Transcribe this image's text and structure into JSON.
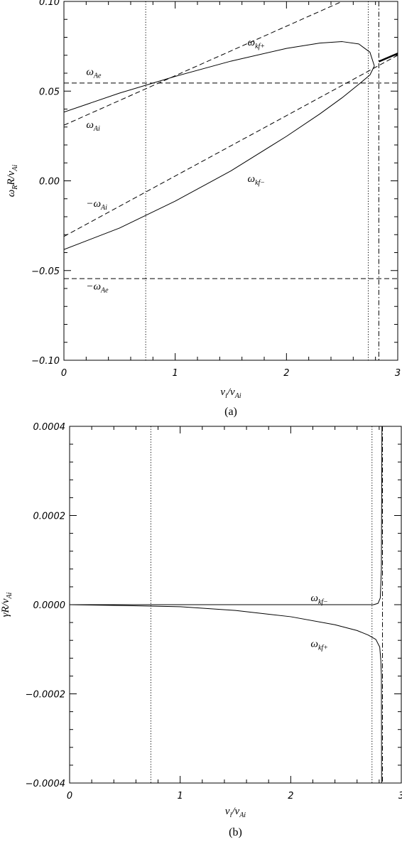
{
  "chart_data": [
    {
      "type": "line",
      "panel_label": "(a)",
      "xlabel": {
        "main": "v",
        "sub1": "i",
        "slash": "/v",
        "sub2": "Ai"
      },
      "ylabel": {
        "main": "ω",
        "sub1": "R",
        "mid": "R/v",
        "sub2": "Ai"
      },
      "xlim": [
        0,
        3
      ],
      "ylim": [
        -0.1,
        0.1
      ],
      "x_ticks": [
        0,
        1,
        2,
        3
      ],
      "x_tick_labels": [
        "0",
        "1",
        "2",
        "3"
      ],
      "y_ticks": [
        -0.1,
        -0.05,
        0,
        0.05,
        0.1
      ],
      "y_tick_labels": [
        "−0.10",
        "−0.05",
        "0.00",
        "0.05",
        "0.10"
      ],
      "grid": false,
      "series": [
        {
          "name": "ωkf+",
          "style": "solid",
          "x": [
            0,
            0.5,
            1.0,
            1.5,
            2.0,
            2.3,
            2.5,
            2.65,
            2.75,
            2.79
          ],
          "y": [
            0.0383,
            0.0489,
            0.0582,
            0.0667,
            0.0738,
            0.0768,
            0.0776,
            0.0763,
            0.0717,
            0.064
          ]
        },
        {
          "name": "ωkf−",
          "style": "solid",
          "x": [
            0,
            0.5,
            1.0,
            1.5,
            2.0,
            2.3,
            2.5,
            2.65,
            2.75,
            2.79
          ],
          "y": [
            -0.0383,
            -0.0263,
            -0.0113,
            0.0055,
            0.0248,
            0.0373,
            0.0463,
            0.0538,
            0.059,
            0.064
          ]
        },
        {
          "name": "bold",
          "style": "bold",
          "x": [
            2.83,
            3.0
          ],
          "y": [
            0.0665,
            0.071
          ]
        },
        {
          "name": "ωAi",
          "style": "dashed",
          "x": [
            0,
            2.5
          ],
          "y": [
            0.031,
            0.1
          ]
        },
        {
          "name": "−ωAi",
          "style": "dashed",
          "x": [
            0,
            3.0
          ],
          "y": [
            -0.031,
            0.07
          ]
        },
        {
          "name": "ωAe",
          "style": "dashed",
          "x": [
            0,
            3.0
          ],
          "y": [
            0.0545,
            0.0545
          ]
        },
        {
          "name": "−ωAe",
          "style": "dashed",
          "x": [
            0,
            3.0
          ],
          "y": [
            -0.0545,
            -0.0545
          ]
        }
      ],
      "vlines": [
        {
          "x": 0.735,
          "style": "dotted"
        },
        {
          "x": 2.735,
          "style": "dotted"
        },
        {
          "x": 2.83,
          "style": "dashdot"
        }
      ],
      "annotations": [
        {
          "main": "ω",
          "sub": "Ae",
          "x": 0.2,
          "y": 0.059
        },
        {
          "main": "ω",
          "sub": "Ai",
          "x": 0.2,
          "y": 0.0295
        },
        {
          "main": "−ω",
          "sub": "Ai",
          "x": 0.2,
          "y": -0.0145
        },
        {
          "main": "−ω",
          "sub": "Ae",
          "x": 0.2,
          "y": -0.0605
        },
        {
          "main": "ω",
          "sub": "kf+",
          "x": 1.65,
          "y": 0.0755
        },
        {
          "main": "ω",
          "sub": "kf−",
          "x": 1.65,
          "y": -0.0005
        }
      ]
    },
    {
      "type": "line",
      "panel_label": "(b)",
      "xlabel": {
        "main": "v",
        "sub1": "i",
        "slash": "/v",
        "sub2": "Ai"
      },
      "ylabel": {
        "main": "γR/v",
        "sub2": "Ai"
      },
      "xlim": [
        0,
        3
      ],
      "ylim": [
        -0.0004,
        0.0004
      ],
      "x_ticks": [
        0,
        1,
        2,
        3
      ],
      "x_tick_labels": [
        "0",
        "1",
        "2",
        "3"
      ],
      "y_ticks": [
        -0.0004,
        -0.0002,
        0,
        0.0002,
        0.0004
      ],
      "y_tick_labels": [
        "−0.0004",
        "−0.0002",
        "0.0000",
        "0.0002",
        "0.0004"
      ],
      "grid": false,
      "series": [
        {
          "name": "ωkf−",
          "style": "solid",
          "x": [
            0,
            2.5,
            2.75,
            2.79,
            2.81,
            2.82,
            2.825
          ],
          "y": [
            0,
            0,
            0,
            3e-06,
            1.5e-05,
            8e-05,
            0.0004
          ]
        },
        {
          "name": "ωkf+",
          "style": "solid",
          "x": [
            0,
            0.5,
            1.0,
            1.5,
            2.0,
            2.4,
            2.6,
            2.7,
            2.77,
            2.805,
            2.815,
            2.82,
            2.822
          ],
          "y": [
            0,
            -2e-06,
            -4.5e-06,
            -1.3e-05,
            -2.7e-05,
            -4.5e-05,
            -5.8e-05,
            -6.8e-05,
            -7.8e-05,
            -9.5e-05,
            -0.000125,
            -0.00016,
            -0.0004
          ]
        }
      ],
      "vlines": [
        {
          "x": 0.735,
          "style": "dotted"
        },
        {
          "x": 2.735,
          "style": "dotted"
        },
        {
          "x": 2.83,
          "style": "dashdot"
        }
      ],
      "annotations": [
        {
          "main": "ω",
          "sub": "kf−",
          "x": 2.18,
          "y": 8e-06
        },
        {
          "main": "ω",
          "sub": "kf+",
          "x": 2.18,
          "y": -9.5e-05
        }
      ]
    }
  ]
}
